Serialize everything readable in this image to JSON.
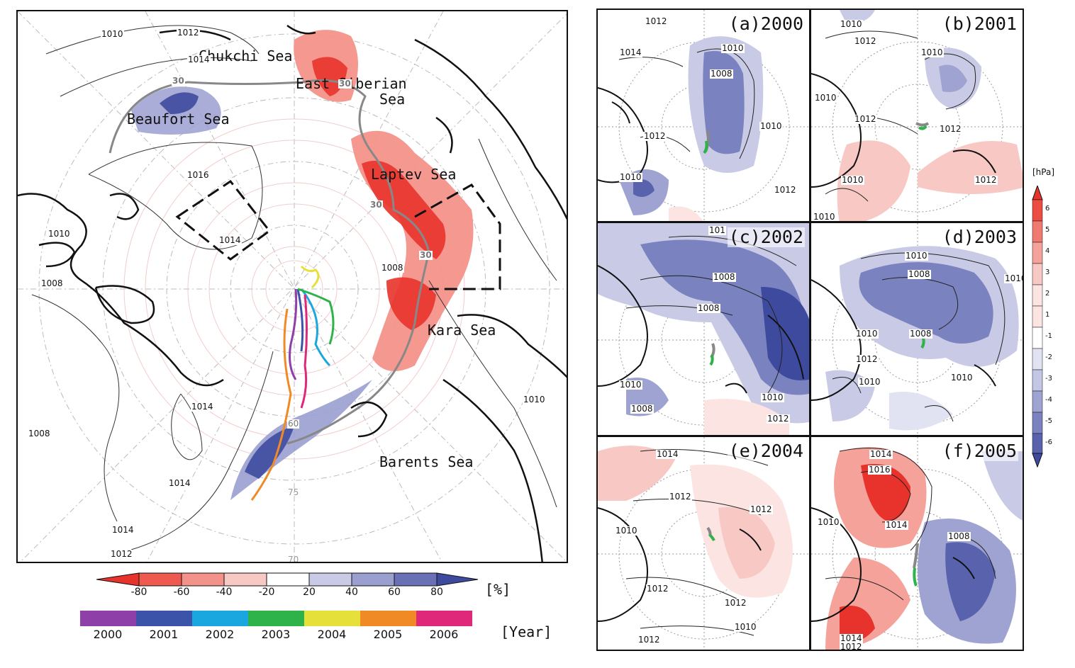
{
  "main_map": {
    "seas": [
      {
        "name": "Chukchi Sea"
      },
      {
        "name": "East Siberian"
      },
      {
        "name": "Sea"
      },
      {
        "name": "Beaufort Sea"
      },
      {
        "name": "Laptev Sea"
      },
      {
        "name": "Kara Sea"
      },
      {
        "name": "Barents Sea"
      }
    ],
    "isobar_labels": [
      "1010",
      "1012",
      "1014",
      "1016",
      "1014",
      "1010",
      "1008",
      "1008",
      "1014",
      "1008",
      "1014",
      "1014",
      "1012",
      "1010"
    ],
    "contour_labels": [
      "30",
      "30",
      "30",
      "30",
      "60",
      "75",
      "70"
    ],
    "colorbar": {
      "ticks": [
        "-80",
        "-60",
        "-40",
        "-20",
        "20",
        "40",
        "60",
        "80"
      ],
      "unit": "[%]",
      "colors": [
        "#e8332c",
        "#ee5a50",
        "#f3928a",
        "#f8c8c4",
        "#ffffff",
        "#c9cbe6",
        "#9a9fd0",
        "#6a70b6",
        "#3e4a9e"
      ]
    },
    "year_bar": {
      "years": [
        "2000",
        "2001",
        "2002",
        "2003",
        "2004",
        "2005",
        "2006"
      ],
      "colors": [
        "#8e3fa8",
        "#3b53a8",
        "#1aa6de",
        "#2eb34a",
        "#e6e13a",
        "#f08a24",
        "#e0287a"
      ],
      "unit": "[Year]"
    }
  },
  "panels": [
    {
      "title": "(a)2000",
      "labels": [
        "1012",
        "1014",
        "1010",
        "1008",
        "1012",
        "1010",
        "1010",
        "1012"
      ]
    },
    {
      "title": "(b)2001",
      "labels": [
        "1010",
        "1012",
        "1010",
        "1010",
        "1012",
        "1012",
        "1010",
        "1012",
        "1010"
      ]
    },
    {
      "title": "(c)2002",
      "labels": [
        "101",
        "1008",
        "1008",
        "1010",
        "1008",
        "1010",
        "1012"
      ]
    },
    {
      "title": "(d)2003",
      "labels": [
        "1010",
        "1008",
        "1010",
        "1010",
        "1008",
        "1012",
        "1010",
        "1010"
      ]
    },
    {
      "title": "(e)2004",
      "labels": [
        "1014",
        "1012",
        "1012",
        "1010",
        "1012",
        "1012",
        "1010",
        "1012"
      ]
    },
    {
      "title": "(f)2005",
      "labels": [
        "1014",
        "1016",
        "1014",
        "1010",
        "1008",
        "1014",
        "1012"
      ]
    }
  ],
  "right_colorbar": {
    "unit": "[hPa]",
    "ticks": [
      "6",
      "5",
      "4",
      "3",
      "2",
      "1",
      "-1",
      "-2",
      "-3",
      "-4",
      "-5",
      "-6"
    ],
    "colors": [
      "#e8332c",
      "#ec4c42",
      "#f07a70",
      "#f4a29a",
      "#f8c8c4",
      "#fce4e2",
      "#ffffff",
      "#e2e3f2",
      "#c3c6e4",
      "#9ea3d2",
      "#7b82c0",
      "#5962ad",
      "#3e4a9e"
    ]
  }
}
